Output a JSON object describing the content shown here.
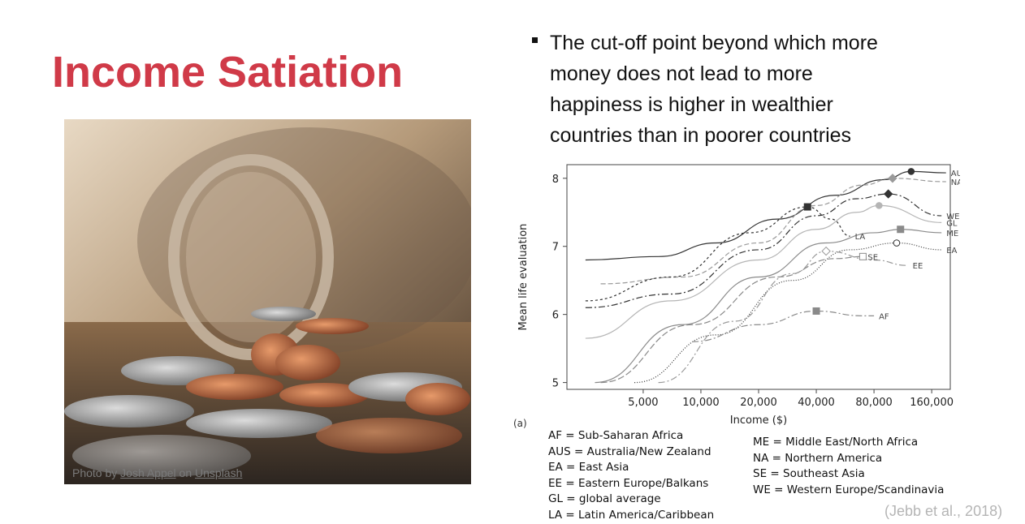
{
  "slide": {
    "title": "Income Satiation",
    "bullet": "The cut-off point beyond which more money does not lead to more happiness is higher in wealthier countries than in poorer countries",
    "citation": "(Jebb et al., 2018)"
  },
  "photo": {
    "credit_prefix": "Photo by ",
    "credit_author": "Josh Appel",
    "credit_mid": " on ",
    "credit_site": "Unsplash"
  },
  "figure": {
    "panel_label": "(a)",
    "legend_left": [
      "AF = Sub-Saharan Africa",
      "AUS = Australia/New Zealand",
      "EA = East Asia",
      "EE = Eastern Europe/Balkans",
      "GL = global average",
      "LA = Latin America/Caribbean"
    ],
    "legend_right": [
      "ME = Middle East/North Africa",
      "NA = Northern America",
      "SE = Southeast Asia",
      "WE = Western Europe/Scandinavia"
    ]
  },
  "chart_data": {
    "type": "line",
    "xlabel": "Income ($)",
    "ylabel": "Mean life evaluation",
    "x_scale": "log",
    "xlim": [
      2000,
      200000
    ],
    "ylim": [
      4.9,
      8.2
    ],
    "x_ticks": [
      5000,
      10000,
      20000,
      40000,
      80000,
      160000
    ],
    "x_tick_labels": [
      "5,000",
      "10,000",
      "20,000",
      "40,000",
      "80,000",
      "160,000"
    ],
    "y_ticks": [
      5,
      6,
      7,
      8
    ],
    "y_tick_labels": [
      "5",
      "6",
      "7",
      "8"
    ],
    "grid": false,
    "series": [
      {
        "name": "AUS",
        "color": "#333333",
        "dash": "",
        "marker": "circle-filled",
        "points": [
          [
            2500,
            6.8
          ],
          [
            6000,
            6.85
          ],
          [
            12000,
            7.05
          ],
          [
            25000,
            7.4
          ],
          [
            50000,
            7.75
          ],
          [
            90000,
            7.98
          ],
          [
            125000,
            8.1
          ],
          [
            190000,
            8.08
          ]
        ],
        "satiation": [
          125000,
          8.1
        ]
      },
      {
        "name": "NA",
        "color": "#9a9a9a",
        "dash": "6,3",
        "marker": "diamond-filled",
        "points": [
          [
            3000,
            6.45
          ],
          [
            8000,
            6.55
          ],
          [
            20000,
            7.05
          ],
          [
            40000,
            7.6
          ],
          [
            70000,
            7.9
          ],
          [
            100000,
            8.0
          ],
          [
            190000,
            7.95
          ]
        ],
        "satiation": [
          100000,
          8.0
        ]
      },
      {
        "name": "WE",
        "color": "#333333",
        "dash": "8,3,2,3",
        "marker": "diamond-filled",
        "points": [
          [
            2500,
            6.1
          ],
          [
            7000,
            6.3
          ],
          [
            20000,
            6.95
          ],
          [
            40000,
            7.45
          ],
          [
            65000,
            7.7
          ],
          [
            95000,
            7.77
          ],
          [
            180000,
            7.45
          ]
        ],
        "satiation": [
          95000,
          7.77
        ]
      },
      {
        "name": "GL",
        "color": "#b5b5b5",
        "dash": "",
        "marker": "circle-filled",
        "points": [
          [
            2500,
            5.65
          ],
          [
            7000,
            6.2
          ],
          [
            20000,
            6.8
          ],
          [
            40000,
            7.25
          ],
          [
            65000,
            7.5
          ],
          [
            85000,
            7.6
          ],
          [
            180000,
            7.35
          ]
        ],
        "satiation": [
          85000,
          7.6
        ]
      },
      {
        "name": "LA",
        "color": "#333333",
        "dash": "3,3",
        "marker": "square-filled",
        "points": [
          [
            2500,
            6.2
          ],
          [
            7000,
            6.55
          ],
          [
            18000,
            7.2
          ],
          [
            36000,
            7.58
          ],
          [
            48000,
            7.4
          ],
          [
            60000,
            7.15
          ]
        ],
        "satiation": [
          36000,
          7.58
        ]
      },
      {
        "name": "ME",
        "color": "#8a8a8a",
        "dash": "",
        "marker": "square-filled",
        "points": [
          [
            2800,
            5.0
          ],
          [
            8000,
            5.85
          ],
          [
            20000,
            6.55
          ],
          [
            45000,
            7.05
          ],
          [
            80000,
            7.2
          ],
          [
            110000,
            7.25
          ],
          [
            180000,
            7.2
          ]
        ],
        "satiation": [
          110000,
          7.25
        ]
      },
      {
        "name": "EA",
        "color": "#333333",
        "dash": "1,2",
        "marker": "circle-open",
        "points": [
          [
            4500,
            5.0
          ],
          [
            12000,
            5.7
          ],
          [
            30000,
            6.5
          ],
          [
            60000,
            6.95
          ],
          [
            105000,
            7.05
          ],
          [
            180000,
            6.95
          ]
        ],
        "satiation": [
          105000,
          7.05
        ]
      },
      {
        "name": "SE",
        "color": "#8a8a8a",
        "dash": "8,3",
        "marker": "square-open",
        "points": [
          [
            3000,
            5.0
          ],
          [
            9000,
            5.85
          ],
          [
            25000,
            6.55
          ],
          [
            50000,
            6.82
          ],
          [
            70000,
            6.85
          ]
        ],
        "satiation": [
          70000,
          6.85
        ]
      },
      {
        "name": "EE",
        "color": "#9a9a9a",
        "dash": "8,3,2,3",
        "marker": "diamond-open",
        "points": [
          [
            6000,
            5.0
          ],
          [
            15000,
            5.9
          ],
          [
            30000,
            6.6
          ],
          [
            45000,
            6.93
          ],
          [
            80000,
            6.8
          ],
          [
            120000,
            6.72
          ]
        ],
        "satiation": [
          45000,
          6.93
        ]
      },
      {
        "name": "AF",
        "color": "#8a8a8a",
        "dash": "8,3,2,3",
        "marker": "square-filled",
        "points": [
          [
            9000,
            5.6
          ],
          [
            20000,
            5.85
          ],
          [
            40000,
            6.05
          ],
          [
            70000,
            5.98
          ],
          [
            80000,
            5.98
          ]
        ],
        "satiation": [
          40000,
          6.05
        ]
      }
    ]
  }
}
